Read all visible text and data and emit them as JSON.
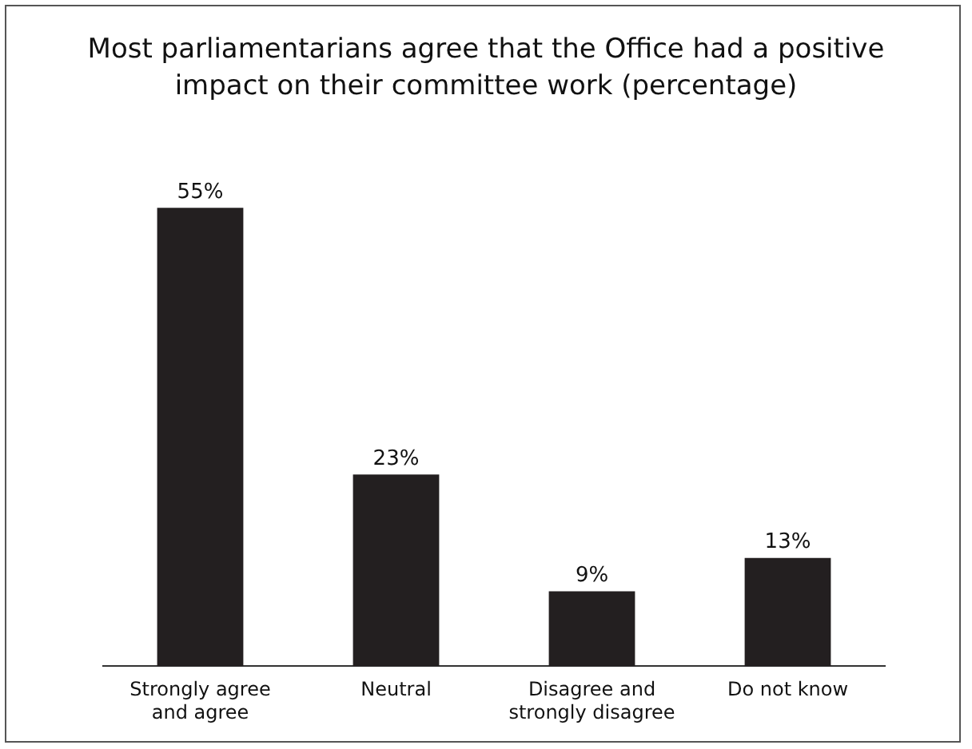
{
  "chart_data": {
    "type": "bar",
    "title": "Most parliamentarians agree that the Office had a positive impact on their committee work (percentage)",
    "categories": [
      "Strongly agree and agree",
      "Neutral",
      "Disagree and strongly disagree",
      "Do not know"
    ],
    "values": [
      55,
      23,
      9,
      13
    ],
    "color": "#231f20",
    "value_labels": [
      "55%",
      "23%",
      "9%",
      "13%"
    ],
    "grid": false,
    "legend": false
  }
}
